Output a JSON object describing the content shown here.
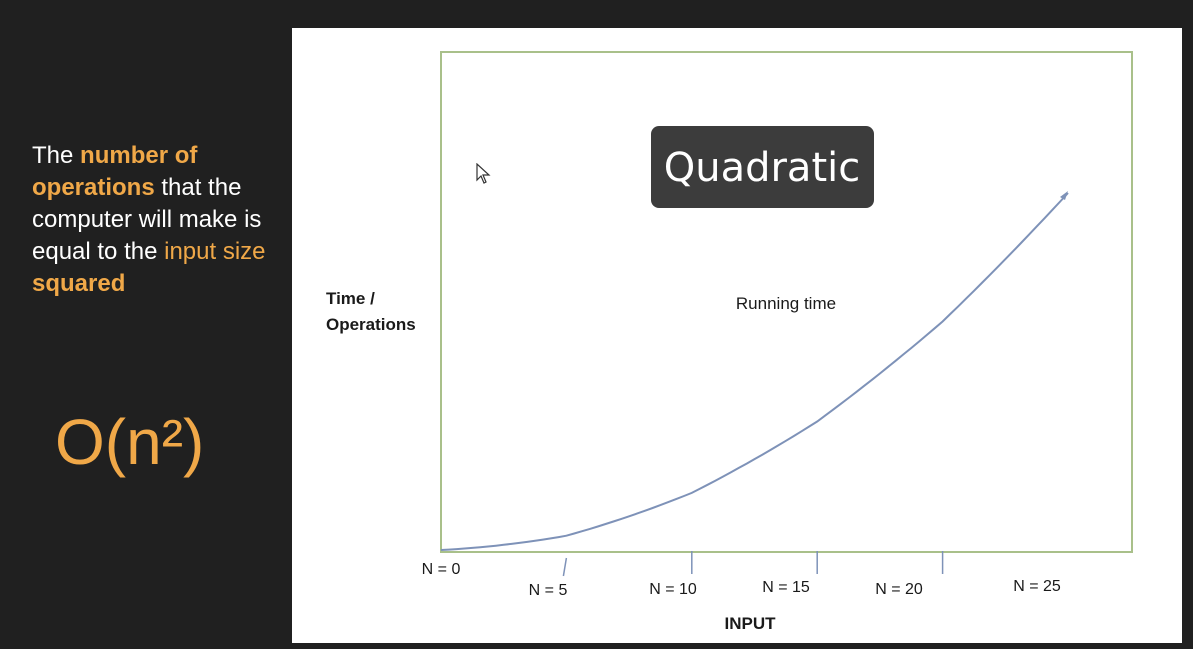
{
  "left_panel": {
    "description": {
      "part1": "The ",
      "part2": "number of operations",
      "part3": " that the computer will make is equal to the ",
      "part4": "input size",
      "part5": " ",
      "part6": "squared"
    },
    "big_o": "O(n²)"
  },
  "colors": {
    "background": "#202020",
    "accent": "#f0a848",
    "frame": "#a9c08a",
    "curve": "#7e92b8",
    "title_box": "#3c3c3c"
  },
  "chart_data": {
    "type": "line",
    "title": "Quadratic",
    "ylabel_lines": [
      "Time /",
      "Operations"
    ],
    "xlabel": "INPUT",
    "series": [
      {
        "name": "Running time",
        "x": [
          0,
          5,
          10,
          15,
          20,
          25
        ],
        "y": [
          0,
          25,
          100,
          225,
          400,
          625
        ]
      }
    ],
    "tick_labels": [
      "N = 0",
      "N = 5",
      "N = 10",
      "N = 15",
      "N = 20",
      "N = 25"
    ],
    "xlim": [
      0,
      25
    ],
    "ylim": [
      0,
      625
    ]
  }
}
